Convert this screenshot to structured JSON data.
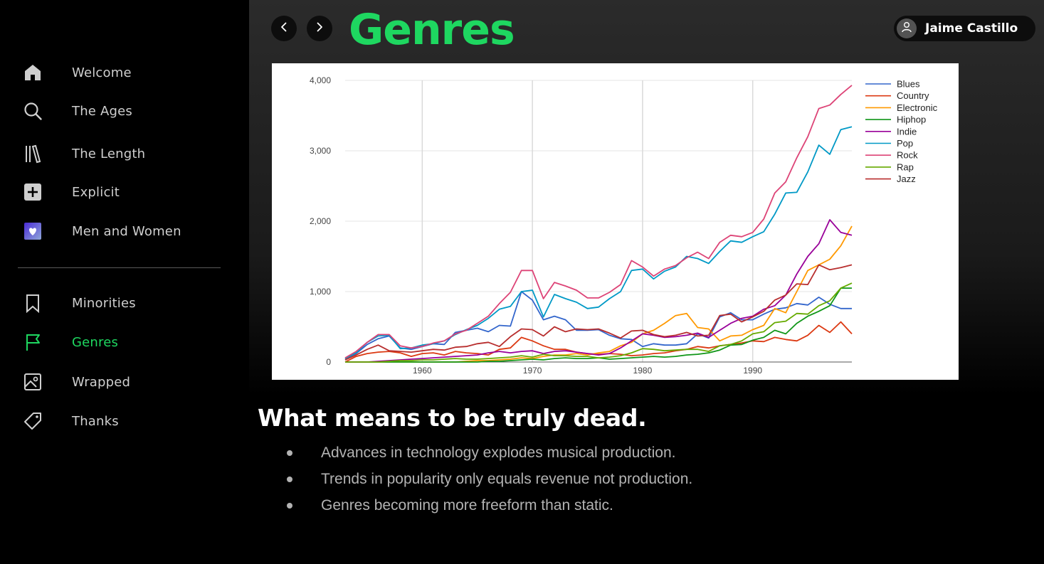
{
  "sidebar": {
    "primary": [
      {
        "label": "Welcome",
        "icon": "home-icon"
      },
      {
        "label": "The Ages",
        "icon": "search-icon"
      },
      {
        "label": "The Length",
        "icon": "library-icon"
      },
      {
        "label": "Explicit",
        "icon": "plus-square-icon"
      },
      {
        "label": "Men and Women",
        "icon": "heart-square-icon"
      }
    ],
    "secondary": [
      {
        "label": "Minorities",
        "icon": "bookmark-icon"
      },
      {
        "label": "Genres",
        "icon": "flag-icon"
      },
      {
        "label": "Wrapped",
        "icon": "image-icon"
      },
      {
        "label": "Thanks",
        "icon": "tag-icon"
      }
    ],
    "active_item": "Genres"
  },
  "header": {
    "title": "Genres",
    "user_name": "Jaime Castillo"
  },
  "colors": {
    "accent": "#1ed760",
    "background": "#000000"
  },
  "chart_data": {
    "type": "line",
    "title": "",
    "xlabel": "",
    "ylabel": "",
    "xlim": [
      1953,
      1999
    ],
    "ylim": [
      0,
      4000
    ],
    "x_ticks": [
      "1960",
      "1970",
      "1980",
      "1990"
    ],
    "y_ticks": [
      "0",
      "1,000",
      "2,000",
      "3,000",
      "4,000"
    ],
    "x_tick_values": [
      1960,
      1970,
      1980,
      1990
    ],
    "y_tick_values": [
      0,
      1000,
      2000,
      3000,
      4000
    ],
    "grid": true,
    "legend_position": "top-right",
    "x": [
      1953,
      1954,
      1955,
      1956,
      1957,
      1958,
      1959,
      1960,
      1961,
      1962,
      1963,
      1964,
      1965,
      1966,
      1967,
      1968,
      1969,
      1970,
      1971,
      1972,
      1973,
      1974,
      1975,
      1976,
      1977,
      1978,
      1979,
      1980,
      1981,
      1982,
      1983,
      1984,
      1985,
      1986,
      1987,
      1988,
      1989,
      1990,
      1991,
      1992,
      1993,
      1994,
      1995,
      1996,
      1997,
      1998,
      1999
    ],
    "series": [
      {
        "name": "Blues",
        "color": "#3366cc",
        "values": [
          40,
          120,
          250,
          330,
          370,
          200,
          180,
          220,
          260,
          250,
          420,
          450,
          480,
          430,
          520,
          510,
          1000,
          880,
          600,
          650,
          600,
          450,
          450,
          460,
          380,
          330,
          320,
          220,
          260,
          240,
          240,
          260,
          400,
          340,
          640,
          700,
          600,
          600,
          680,
          750,
          770,
          830,
          810,
          920,
          820,
          760,
          760
        ]
      },
      {
        "name": "Country",
        "color": "#dc3912",
        "values": [
          0,
          80,
          120,
          140,
          150,
          130,
          80,
          120,
          130,
          100,
          150,
          130,
          120,
          100,
          180,
          200,
          350,
          300,
          230,
          180,
          180,
          140,
          120,
          110,
          120,
          110,
          90,
          100,
          120,
          130,
          160,
          180,
          220,
          200,
          230,
          250,
          270,
          300,
          290,
          350,
          320,
          300,
          380,
          520,
          420,
          570,
          400
        ]
      },
      {
        "name": "Electronic",
        "color": "#ff9900",
        "values": [
          0,
          0,
          0,
          0,
          0,
          0,
          0,
          0,
          0,
          0,
          0,
          10,
          20,
          20,
          30,
          40,
          60,
          50,
          80,
          100,
          100,
          120,
          100,
          130,
          150,
          230,
          280,
          400,
          450,
          550,
          660,
          690,
          490,
          470,
          300,
          370,
          380,
          460,
          520,
          760,
          700,
          1000,
          1300,
          1380,
          1460,
          1650,
          1930
        ]
      },
      {
        "name": "Hiphop",
        "color": "#109618",
        "values": [
          0,
          0,
          0,
          0,
          0,
          0,
          0,
          0,
          0,
          0,
          0,
          0,
          0,
          10,
          10,
          20,
          30,
          40,
          30,
          50,
          60,
          50,
          50,
          60,
          40,
          50,
          60,
          70,
          80,
          70,
          80,
          100,
          110,
          130,
          170,
          240,
          250,
          310,
          350,
          450,
          400,
          550,
          650,
          720,
          800,
          1050,
          1050
        ]
      },
      {
        "name": "Indie",
        "color": "#990099",
        "values": [
          0,
          0,
          0,
          10,
          20,
          30,
          40,
          50,
          60,
          70,
          80,
          90,
          100,
          130,
          150,
          130,
          150,
          160,
          120,
          150,
          160,
          140,
          120,
          100,
          120,
          200,
          300,
          400,
          380,
          350,
          360,
          380,
          410,
          350,
          450,
          550,
          620,
          650,
          750,
          800,
          950,
          1250,
          1500,
          1680,
          2020,
          1840,
          1800
        ]
      },
      {
        "name": "Pop",
        "color": "#0099c6",
        "values": [
          50,
          130,
          280,
          370,
          380,
          190,
          200,
          240,
          260,
          300,
          390,
          460,
          520,
          620,
          750,
          790,
          1000,
          1020,
          640,
          960,
          900,
          850,
          760,
          780,
          900,
          1000,
          1300,
          1320,
          1180,
          1290,
          1350,
          1500,
          1470,
          1400,
          1570,
          1720,
          1700,
          1780,
          1850,
          2100,
          2400,
          2410,
          2700,
          3080,
          2950,
          3300,
          3340
        ]
      },
      {
        "name": "Rock",
        "color": "#dd4477",
        "values": [
          60,
          150,
          280,
          390,
          390,
          230,
          200,
          220,
          270,
          300,
          400,
          450,
          550,
          650,
          830,
          990,
          1300,
          1300,
          900,
          1130,
          1080,
          1020,
          910,
          910,
          990,
          1100,
          1440,
          1350,
          1220,
          1320,
          1370,
          1480,
          1560,
          1470,
          1700,
          1800,
          1780,
          1840,
          2030,
          2400,
          2560,
          2900,
          3200,
          3600,
          3650,
          3800,
          3930
        ]
      },
      {
        "name": "Rap",
        "color": "#66aa00",
        "values": [
          0,
          0,
          0,
          0,
          10,
          20,
          20,
          30,
          30,
          40,
          50,
          40,
          40,
          50,
          60,
          70,
          90,
          70,
          110,
          90,
          90,
          80,
          80,
          60,
          70,
          90,
          130,
          190,
          180,
          160,
          170,
          180,
          180,
          150,
          230,
          250,
          300,
          400,
          430,
          560,
          580,
          690,
          680,
          800,
          870,
          1050,
          1120
        ]
      },
      {
        "name": "Jazz",
        "color": "#b82e2e",
        "values": [
          30,
          100,
          180,
          240,
          160,
          150,
          140,
          160,
          180,
          170,
          210,
          220,
          260,
          280,
          220,
          360,
          470,
          460,
          370,
          500,
          430,
          470,
          460,
          470,
          410,
          340,
          440,
          450,
          390,
          360,
          380,
          420,
          370,
          380,
          660,
          680,
          570,
          640,
          720,
          880,
          950,
          1110,
          1100,
          1380,
          1310,
          1340,
          1380
        ]
      }
    ]
  },
  "content": {
    "heading": "What means to be truly dead.",
    "bullets": [
      "Advances in technology explodes musical production.",
      "Trends in popularity only equals revenue not production.",
      "Genres becoming more freeform than static."
    ]
  }
}
